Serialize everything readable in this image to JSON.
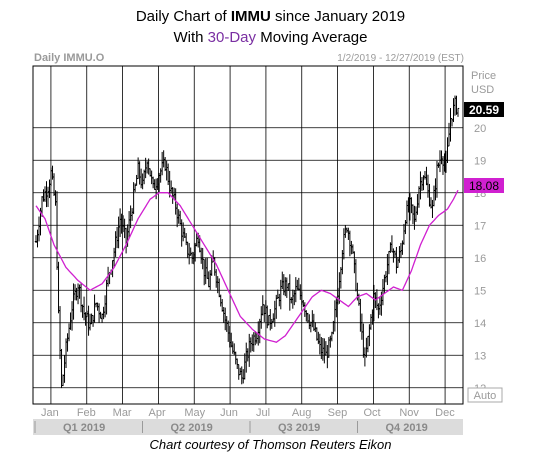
{
  "header": {
    "title_prefix": "Daily Chart of ",
    "title_ticker": "IMMU",
    "title_suffix": " since January 2019",
    "subtitle_prefix": "With ",
    "subtitle_ma": "30-Day",
    "subtitle_suffix": " Moving Average"
  },
  "footer": {
    "credit": "Chart courtesy of Thomson Reuters Eikon"
  },
  "colors": {
    "ma_line": "#d020d0",
    "price_bar": "#000000",
    "grid": "#000000",
    "last_price_bg": "#000000",
    "ma_label_bg": "#d020d0",
    "quarter_strip": "#dcdcdc"
  },
  "chart_data": {
    "type": "ohlc",
    "symbol_label": "Daily IMMU.O",
    "date_range": "1/2/2019 - 12/27/2019 (EST)",
    "ylabel": "Price",
    "currency": "USD",
    "ylim": [
      11.5,
      21.9
    ],
    "y_ticks": [
      12,
      13,
      14,
      15,
      16,
      17,
      18,
      19,
      20
    ],
    "y_tick_labels": [
      "12",
      "13",
      "14",
      "15",
      "16",
      "17",
      "18",
      "19",
      "20"
    ],
    "months": [
      "Jan",
      "Feb",
      "Mar",
      "Apr",
      "May",
      "Jun",
      "Jul",
      "Aug",
      "Sep",
      "Oct",
      "Nov",
      "Dec"
    ],
    "quarters": [
      "Q1 2019",
      "Q2 2019",
      "Q3 2019",
      "Q4 2019"
    ],
    "auto_label": "Auto",
    "last_price": "20.59",
    "ma_value": "18.08",
    "ma_period": 30,
    "price_path": [
      [
        0,
        16.5
      ],
      [
        4,
        17.8
      ],
      [
        8,
        18.2
      ],
      [
        10,
        18.6
      ],
      [
        13,
        17.6
      ],
      [
        15,
        14.2
      ],
      [
        17,
        12.0
      ],
      [
        20,
        13.2
      ],
      [
        24,
        14.5
      ],
      [
        28,
        15.2
      ],
      [
        32,
        14.3
      ],
      [
        36,
        13.9
      ],
      [
        40,
        14.6
      ],
      [
        44,
        14.2
      ],
      [
        48,
        15.4
      ],
      [
        52,
        16.2
      ],
      [
        56,
        17.2
      ],
      [
        60,
        16.5
      ],
      [
        64,
        17.6
      ],
      [
        68,
        18.7
      ],
      [
        71,
        18.2
      ],
      [
        74,
        19.1
      ],
      [
        78,
        18.1
      ],
      [
        82,
        18.6
      ],
      [
        86,
        18.9
      ],
      [
        90,
        18.0
      ],
      [
        93,
        17.6
      ],
      [
        96,
        17.0
      ],
      [
        100,
        16.3
      ],
      [
        104,
        16.0
      ],
      [
        108,
        16.7
      ],
      [
        112,
        15.6
      ],
      [
        115,
        15.2
      ],
      [
        118,
        15.9
      ],
      [
        122,
        15.0
      ],
      [
        126,
        14.1
      ],
      [
        130,
        13.3
      ],
      [
        134,
        12.6
      ],
      [
        137,
        12.3
      ],
      [
        140,
        12.9
      ],
      [
        143,
        13.4
      ],
      [
        147,
        13.7
      ],
      [
        151,
        14.6
      ],
      [
        155,
        14.0
      ],
      [
        159,
        14.4
      ],
      [
        163,
        15.0
      ],
      [
        167,
        15.2
      ],
      [
        170,
        14.6
      ],
      [
        173,
        15.0
      ],
      [
        177,
        14.8
      ],
      [
        181,
        14.2
      ],
      [
        185,
        13.8
      ],
      [
        189,
        13.2
      ],
      [
        193,
        13.0
      ],
      [
        197,
        13.5
      ],
      [
        201,
        15.0
      ],
      [
        204,
        16.3
      ],
      [
        207,
        17.0
      ],
      [
        210,
        16.4
      ],
      [
        213,
        15.2
      ],
      [
        216,
        14.0
      ],
      [
        219,
        12.8
      ],
      [
        222,
        13.8
      ],
      [
        225,
        14.8
      ],
      [
        228,
        14.4
      ],
      [
        231,
        15.1
      ],
      [
        234,
        15.8
      ],
      [
        237,
        16.4
      ],
      [
        240,
        15.8
      ],
      [
        243,
        16.2
      ],
      [
        246,
        17.3
      ],
      [
        249,
        17.6
      ],
      [
        252,
        17.1
      ],
      [
        255,
        18.2
      ],
      [
        258,
        18.6
      ],
      [
        261,
        18.0
      ],
      [
        264,
        17.5
      ],
      [
        267,
        18.7
      ],
      [
        270,
        19.2
      ],
      [
        273,
        18.8
      ],
      [
        276,
        20.3
      ],
      [
        279,
        20.7
      ],
      [
        281,
        20.59
      ]
    ],
    "ma_path": [
      [
        0,
        17.6
      ],
      [
        6,
        17.2
      ],
      [
        12,
        16.4
      ],
      [
        20,
        15.7
      ],
      [
        28,
        15.3
      ],
      [
        36,
        15.0
      ],
      [
        44,
        15.2
      ],
      [
        52,
        15.7
      ],
      [
        60,
        16.4
      ],
      [
        68,
        17.2
      ],
      [
        76,
        17.8
      ],
      [
        82,
        18.0
      ],
      [
        88,
        18.0
      ],
      [
        96,
        17.6
      ],
      [
        104,
        17.0
      ],
      [
        112,
        16.4
      ],
      [
        120,
        15.8
      ],
      [
        128,
        15.0
      ],
      [
        136,
        14.2
      ],
      [
        144,
        13.8
      ],
      [
        152,
        13.5
      ],
      [
        160,
        13.4
      ],
      [
        166,
        13.6
      ],
      [
        172,
        14.0
      ],
      [
        178,
        14.4
      ],
      [
        184,
        14.8
      ],
      [
        190,
        15.0
      ],
      [
        196,
        14.9
      ],
      [
        202,
        14.7
      ],
      [
        208,
        14.5
      ],
      [
        214,
        14.8
      ],
      [
        220,
        14.9
      ],
      [
        226,
        14.7
      ],
      [
        232,
        14.9
      ],
      [
        238,
        15.1
      ],
      [
        244,
        15.0
      ],
      [
        250,
        15.6
      ],
      [
        256,
        16.4
      ],
      [
        262,
        17.0
      ],
      [
        268,
        17.3
      ],
      [
        274,
        17.5
      ],
      [
        278,
        17.8
      ],
      [
        281,
        18.08
      ]
    ]
  }
}
